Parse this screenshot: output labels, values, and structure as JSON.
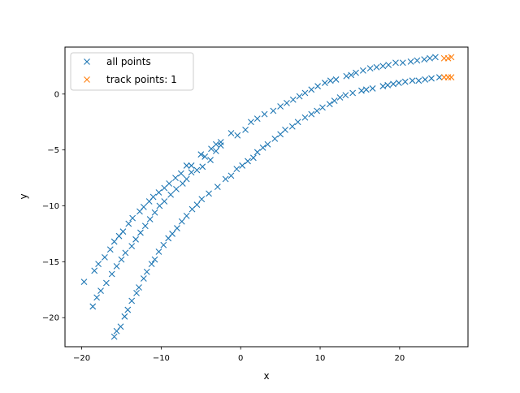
{
  "chart_data": {
    "type": "scatter",
    "title": "",
    "xlabel": "x",
    "ylabel": "y",
    "xlim": [
      -22.1,
      28.6
    ],
    "ylim": [
      -22.6,
      4.2
    ],
    "xticks": [
      -20,
      -10,
      0,
      10,
      20
    ],
    "yticks": [
      -20,
      -15,
      -10,
      -5,
      0
    ],
    "grid": false,
    "legend_position": "upper left",
    "marker": "x",
    "series": [
      {
        "name": "all points",
        "color": "#1f77b4",
        "points": [
          [
            -19.7,
            -16.8
          ],
          [
            -18.4,
            -15.8
          ],
          [
            -17.9,
            -15.2
          ],
          [
            -17.1,
            -14.6
          ],
          [
            -16.4,
            -13.9
          ],
          [
            -15.9,
            -13.2
          ],
          [
            -15.3,
            -12.7
          ],
          [
            -14.8,
            -12.3
          ],
          [
            -14.1,
            -11.6
          ],
          [
            -13.6,
            -11.1
          ],
          [
            -12.7,
            -10.5
          ],
          [
            -12.2,
            -10.1
          ],
          [
            -11.5,
            -9.6
          ],
          [
            -11.0,
            -9.2
          ],
          [
            -10.3,
            -8.8
          ],
          [
            -9.6,
            -8.4
          ],
          [
            -9.0,
            -8.0
          ],
          [
            -8.2,
            -7.5
          ],
          [
            -7.5,
            -7.1
          ],
          [
            -6.8,
            -6.4
          ],
          [
            -6.2,
            -6.4
          ],
          [
            -5.0,
            -5.4
          ],
          [
            -4.5,
            -5.6
          ],
          [
            -3.7,
            -4.9
          ],
          [
            -3.1,
            -4.5
          ],
          [
            -2.5,
            -4.3
          ],
          [
            -1.2,
            -3.5
          ],
          [
            -0.4,
            -3.7
          ],
          [
            0.6,
            -3.2
          ],
          [
            1.3,
            -2.5
          ],
          [
            2.1,
            -2.2
          ],
          [
            3.0,
            -1.8
          ],
          [
            4.1,
            -1.5
          ],
          [
            5.0,
            -1.1
          ],
          [
            5.8,
            -0.8
          ],
          [
            6.6,
            -0.5
          ],
          [
            7.4,
            -0.2
          ],
          [
            8.1,
            0.1
          ],
          [
            8.9,
            0.4
          ],
          [
            9.7,
            0.7
          ],
          [
            10.6,
            1.0
          ],
          [
            11.3,
            1.2
          ],
          [
            12.0,
            1.3
          ],
          [
            13.3,
            1.6
          ],
          [
            13.9,
            1.7
          ],
          [
            14.5,
            1.9
          ],
          [
            15.4,
            2.1
          ],
          [
            16.3,
            2.3
          ],
          [
            17.1,
            2.4
          ],
          [
            17.9,
            2.5
          ],
          [
            18.6,
            2.6
          ],
          [
            19.5,
            2.8
          ],
          [
            20.4,
            2.8
          ],
          [
            21.4,
            2.9
          ],
          [
            22.2,
            3.0
          ],
          [
            23.1,
            3.1
          ],
          [
            23.8,
            3.2
          ],
          [
            24.5,
            3.3
          ],
          [
            -18.6,
            -19.0
          ],
          [
            -18.1,
            -18.2
          ],
          [
            -17.6,
            -17.6
          ],
          [
            -16.9,
            -16.9
          ],
          [
            -16.2,
            -16.1
          ],
          [
            -15.6,
            -15.4
          ],
          [
            -15.0,
            -14.8
          ],
          [
            -14.5,
            -14.2
          ],
          [
            -13.7,
            -13.6
          ],
          [
            -13.2,
            -13.0
          ],
          [
            -12.6,
            -12.4
          ],
          [
            -12.0,
            -11.8
          ],
          [
            -11.4,
            -11.2
          ],
          [
            -10.8,
            -10.6
          ],
          [
            -10.2,
            -10.0
          ],
          [
            -9.6,
            -9.6
          ],
          [
            -8.8,
            -9.0
          ],
          [
            -8.1,
            -8.5
          ],
          [
            -7.3,
            -8.0
          ],
          [
            -6.8,
            -7.6
          ],
          [
            -6.2,
            -7.0
          ],
          [
            -5.5,
            -6.8
          ],
          [
            -4.8,
            -6.5
          ],
          [
            -3.8,
            -5.9
          ],
          [
            -3.1,
            -5.1
          ],
          [
            -2.5,
            -4.6
          ],
          [
            -15.9,
            -21.7
          ],
          [
            -15.6,
            -21.2
          ],
          [
            -15.1,
            -20.8
          ],
          [
            -14.6,
            -19.9
          ],
          [
            -14.2,
            -19.3
          ],
          [
            -13.7,
            -18.5
          ],
          [
            -13.1,
            -17.8
          ],
          [
            -12.8,
            -17.3
          ],
          [
            -12.2,
            -16.5
          ],
          [
            -11.8,
            -15.9
          ],
          [
            -11.2,
            -15.2
          ],
          [
            -10.8,
            -14.8
          ],
          [
            -10.3,
            -14.1
          ],
          [
            -9.7,
            -13.5
          ],
          [
            -9.1,
            -12.9
          ],
          [
            -8.6,
            -12.5
          ],
          [
            -8.0,
            -12.0
          ],
          [
            -7.4,
            -11.4
          ],
          [
            -6.8,
            -10.9
          ],
          [
            -6.1,
            -10.3
          ],
          [
            -5.5,
            -9.9
          ],
          [
            -4.9,
            -9.4
          ],
          [
            -4.0,
            -8.9
          ],
          [
            -2.9,
            -8.3
          ],
          [
            -1.9,
            -7.6
          ],
          [
            -1.2,
            -7.3
          ],
          [
            -0.5,
            -6.7
          ],
          [
            0.2,
            -6.4
          ],
          [
            0.9,
            -6.0
          ],
          [
            1.6,
            -5.7
          ],
          [
            2.1,
            -5.2
          ],
          [
            2.8,
            -4.8
          ],
          [
            3.4,
            -4.5
          ],
          [
            4.3,
            -4.0
          ],
          [
            5.0,
            -3.6
          ],
          [
            5.6,
            -3.2
          ],
          [
            6.5,
            -2.9
          ],
          [
            7.2,
            -2.5
          ],
          [
            8.1,
            -2.1
          ],
          [
            8.9,
            -1.8
          ],
          [
            9.6,
            -1.5
          ],
          [
            10.3,
            -1.2
          ],
          [
            11.2,
            -0.9
          ],
          [
            11.8,
            -0.6
          ],
          [
            12.5,
            -0.3
          ],
          [
            13.2,
            -0.1
          ],
          [
            14.1,
            0.1
          ],
          [
            15.2,
            0.3
          ],
          [
            15.8,
            0.4
          ],
          [
            16.6,
            0.5
          ],
          [
            17.9,
            0.7
          ],
          [
            18.5,
            0.8
          ],
          [
            19.2,
            0.9
          ],
          [
            19.9,
            1.0
          ],
          [
            20.7,
            1.1
          ],
          [
            21.6,
            1.2
          ],
          [
            22.4,
            1.2
          ],
          [
            23.2,
            1.3
          ],
          [
            24.0,
            1.4
          ],
          [
            25.0,
            1.5
          ]
        ]
      },
      {
        "name": "track points: 1",
        "color": "#ff7f0e",
        "points": [
          [
            25.6,
            3.2
          ],
          [
            26.1,
            3.2
          ],
          [
            26.5,
            3.3
          ],
          [
            25.6,
            1.5
          ],
          [
            26.1,
            1.5
          ],
          [
            26.5,
            1.5
          ]
        ]
      }
    ]
  }
}
